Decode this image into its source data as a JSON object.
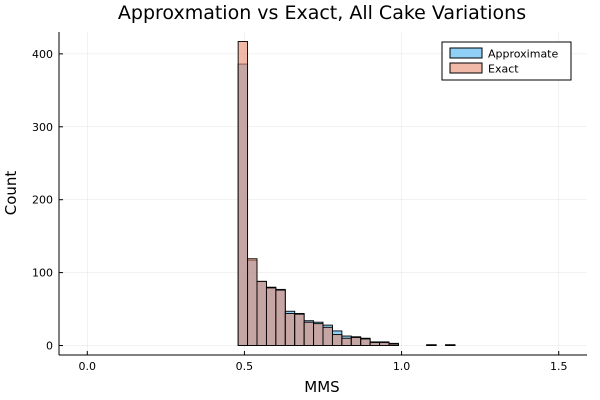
{
  "chart_data": {
    "type": "bar",
    "title": "Approxmation vs Exact, All Cake Variations",
    "xlabel": "MMS",
    "ylabel": "Count",
    "xlim": [
      -0.09,
      1.59
    ],
    "ylim": [
      -13,
      430
    ],
    "xticks": [
      0.0,
      0.5,
      1.0,
      1.5
    ],
    "xtick_labels": [
      "0.0",
      "0.5",
      "1.0",
      "1.5"
    ],
    "yticks": [
      0,
      100,
      200,
      300,
      400
    ],
    "ytick_labels": [
      "0",
      "100",
      "200",
      "300",
      "400"
    ],
    "grid": true,
    "legend_position": "top-right",
    "bin_width": 0.03,
    "bin_start": 0.0,
    "bin_end": 1.5,
    "series": [
      {
        "name": "Approximate",
        "color": "#47B1F0",
        "opacity": 0.6,
        "bins": [
          {
            "x0": 0.48,
            "count": 386
          },
          {
            "x0": 0.51,
            "count": 117
          },
          {
            "x0": 0.54,
            "count": 88
          },
          {
            "x0": 0.57,
            "count": 80
          },
          {
            "x0": 0.6,
            "count": 77
          },
          {
            "x0": 0.63,
            "count": 47
          },
          {
            "x0": 0.66,
            "count": 44
          },
          {
            "x0": 0.69,
            "count": 34
          },
          {
            "x0": 0.72,
            "count": 32
          },
          {
            "x0": 0.75,
            "count": 28
          },
          {
            "x0": 0.78,
            "count": 20
          },
          {
            "x0": 0.81,
            "count": 13
          },
          {
            "x0": 0.84,
            "count": 12
          },
          {
            "x0": 0.87,
            "count": 10
          },
          {
            "x0": 0.9,
            "count": 5
          },
          {
            "x0": 0.93,
            "count": 5
          },
          {
            "x0": 0.96,
            "count": 3
          },
          {
            "x0": 1.08,
            "count": 1
          },
          {
            "x0": 1.14,
            "count": 1
          }
        ]
      },
      {
        "name": "Exact",
        "color": "#E88A6E",
        "opacity": 0.6,
        "bins": [
          {
            "x0": 0.48,
            "count": 417
          },
          {
            "x0": 0.51,
            "count": 119
          },
          {
            "x0": 0.54,
            "count": 88
          },
          {
            "x0": 0.57,
            "count": 79
          },
          {
            "x0": 0.6,
            "count": 76
          },
          {
            "x0": 0.63,
            "count": 44
          },
          {
            "x0": 0.66,
            "count": 43
          },
          {
            "x0": 0.69,
            "count": 32
          },
          {
            "x0": 0.72,
            "count": 30
          },
          {
            "x0": 0.75,
            "count": 25
          },
          {
            "x0": 0.78,
            "count": 15
          },
          {
            "x0": 0.81,
            "count": 10
          },
          {
            "x0": 0.84,
            "count": 11
          },
          {
            "x0": 0.87,
            "count": 9
          },
          {
            "x0": 0.9,
            "count": 4
          },
          {
            "x0": 0.93,
            "count": 4
          },
          {
            "x0": 0.96,
            "count": 2
          },
          {
            "x0": 1.08,
            "count": 1
          },
          {
            "x0": 1.14,
            "count": 1
          }
        ]
      }
    ]
  }
}
